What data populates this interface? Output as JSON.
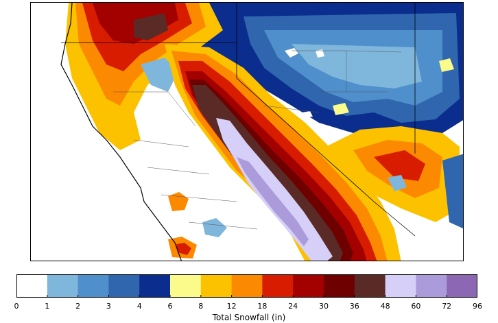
{
  "colorbar": {
    "label": "Total Snowfall (in)",
    "boundaries": [
      "0",
      "1",
      "2",
      "3",
      "4",
      "6",
      "8",
      "12",
      "18",
      "24",
      "30",
      "36",
      "48",
      "60",
      "72",
      "96"
    ],
    "colors": [
      "#ffffff",
      "#7fb6dc",
      "#4f8fcb",
      "#2f66ae",
      "#0b2d8e",
      "#fbfb8c",
      "#fcc200",
      "#fc8a00",
      "#d81c00",
      "#a30000",
      "#6e0000",
      "#5a2a26",
      "#d6cff8",
      "#ab9bdb",
      "#8c68b4"
    ]
  },
  "map": {
    "description_colors": {
      "none": "#ffffff",
      "light_blue": "#7fb6dc",
      "mid_blue": "#4f8fcb",
      "dark_blue": "#2f66ae",
      "navy": "#0b2d8e",
      "yellow": "#fbfb8c",
      "gold": "#fcc200",
      "orange": "#fc8a00",
      "red": "#d81c00",
      "dark_red": "#a30000",
      "maroon": "#6e0000",
      "brown": "#5a2a26",
      "lavender": "#d6cff8",
      "lilac": "#ab9bdb",
      "purple": "#8c68b4"
    }
  }
}
